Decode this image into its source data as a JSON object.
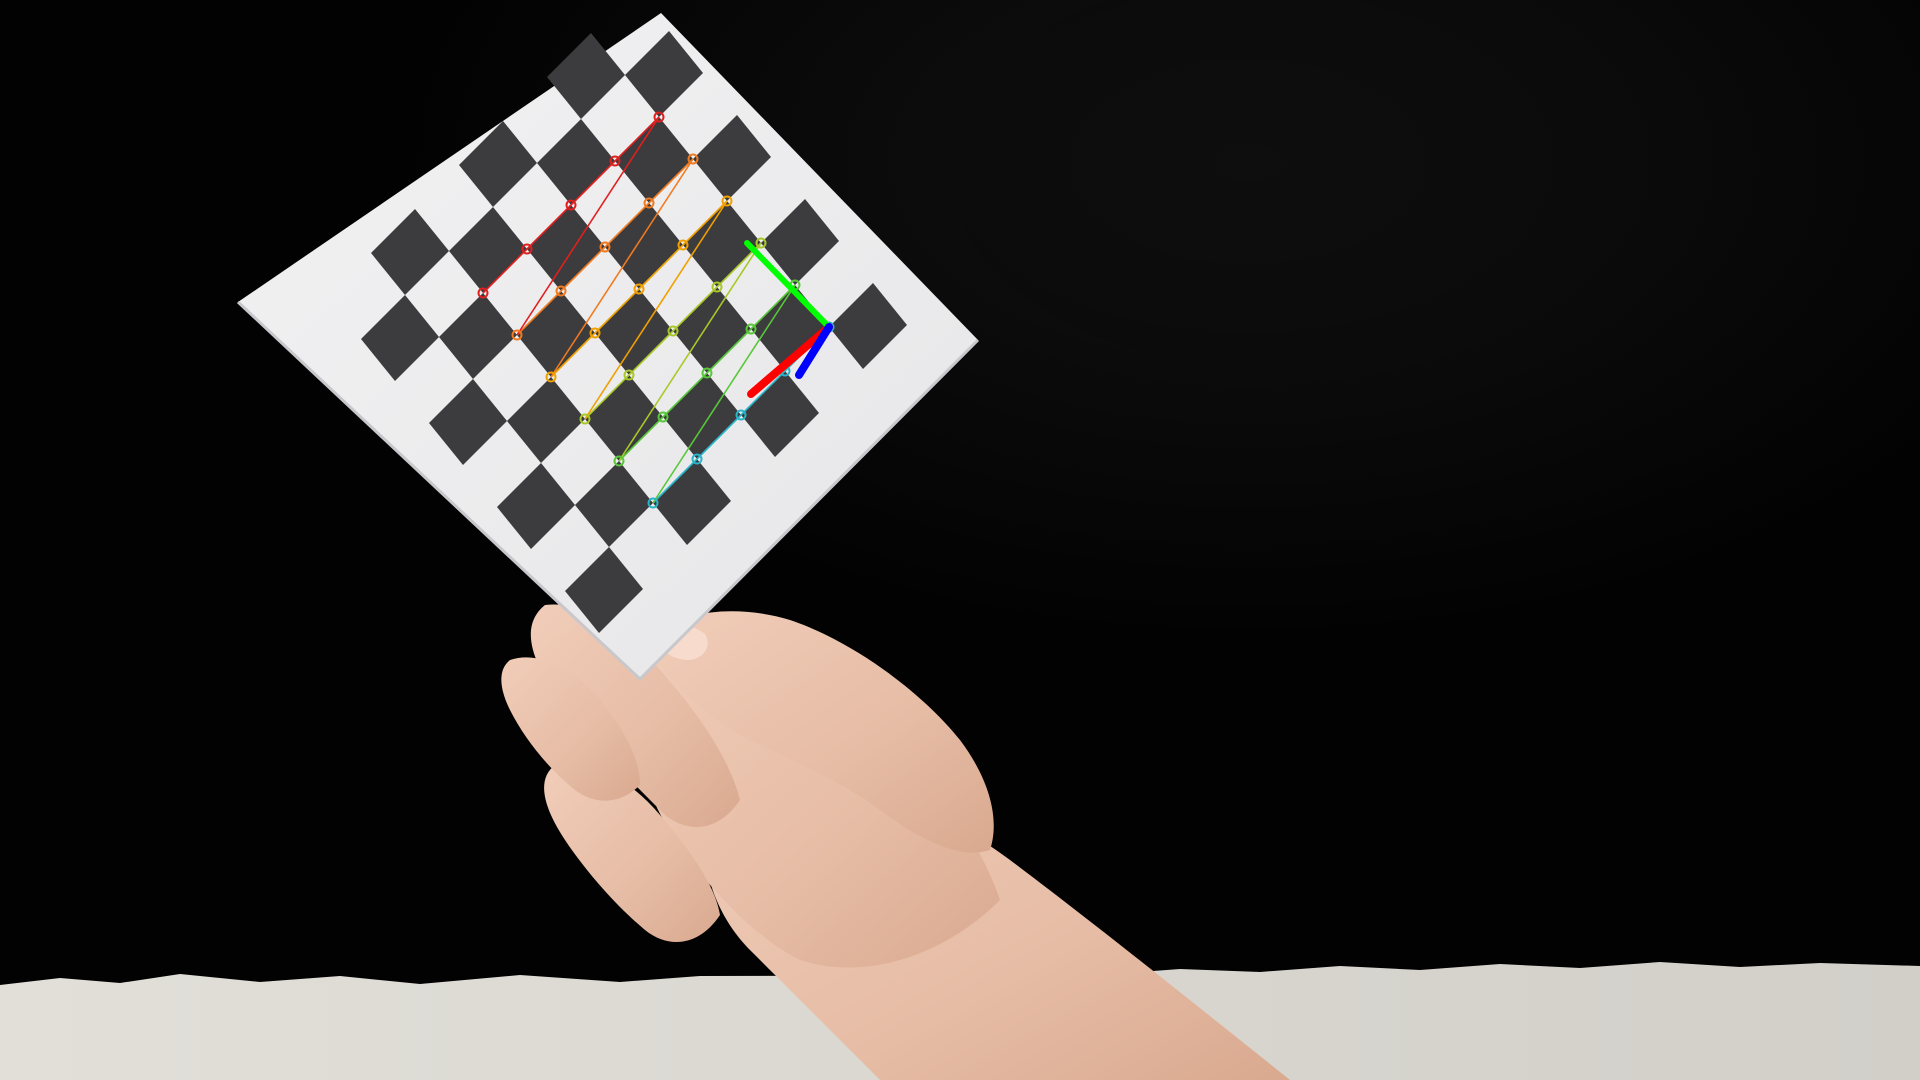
{
  "scene": {
    "description_free": true,
    "background_color": "#020202",
    "table_color": "#d8d5cf",
    "board_color": "#eeeeef",
    "square_color": "#3c3b3d",
    "skin_color": "#e9c2ad"
  },
  "calibration": {
    "rows": 6,
    "cols": 5,
    "row_colors": [
      "#29b4c9",
      "#58c83a",
      "#a8c82a",
      "#f0a000",
      "#f07a20",
      "#e02020"
    ],
    "axes": [
      {
        "name": "x-axis",
        "color": "#ff0000"
      },
      {
        "name": "y-axis",
        "color": "#00ff00"
      },
      {
        "name": "z-axis",
        "color": "#0000ff"
      }
    ]
  }
}
